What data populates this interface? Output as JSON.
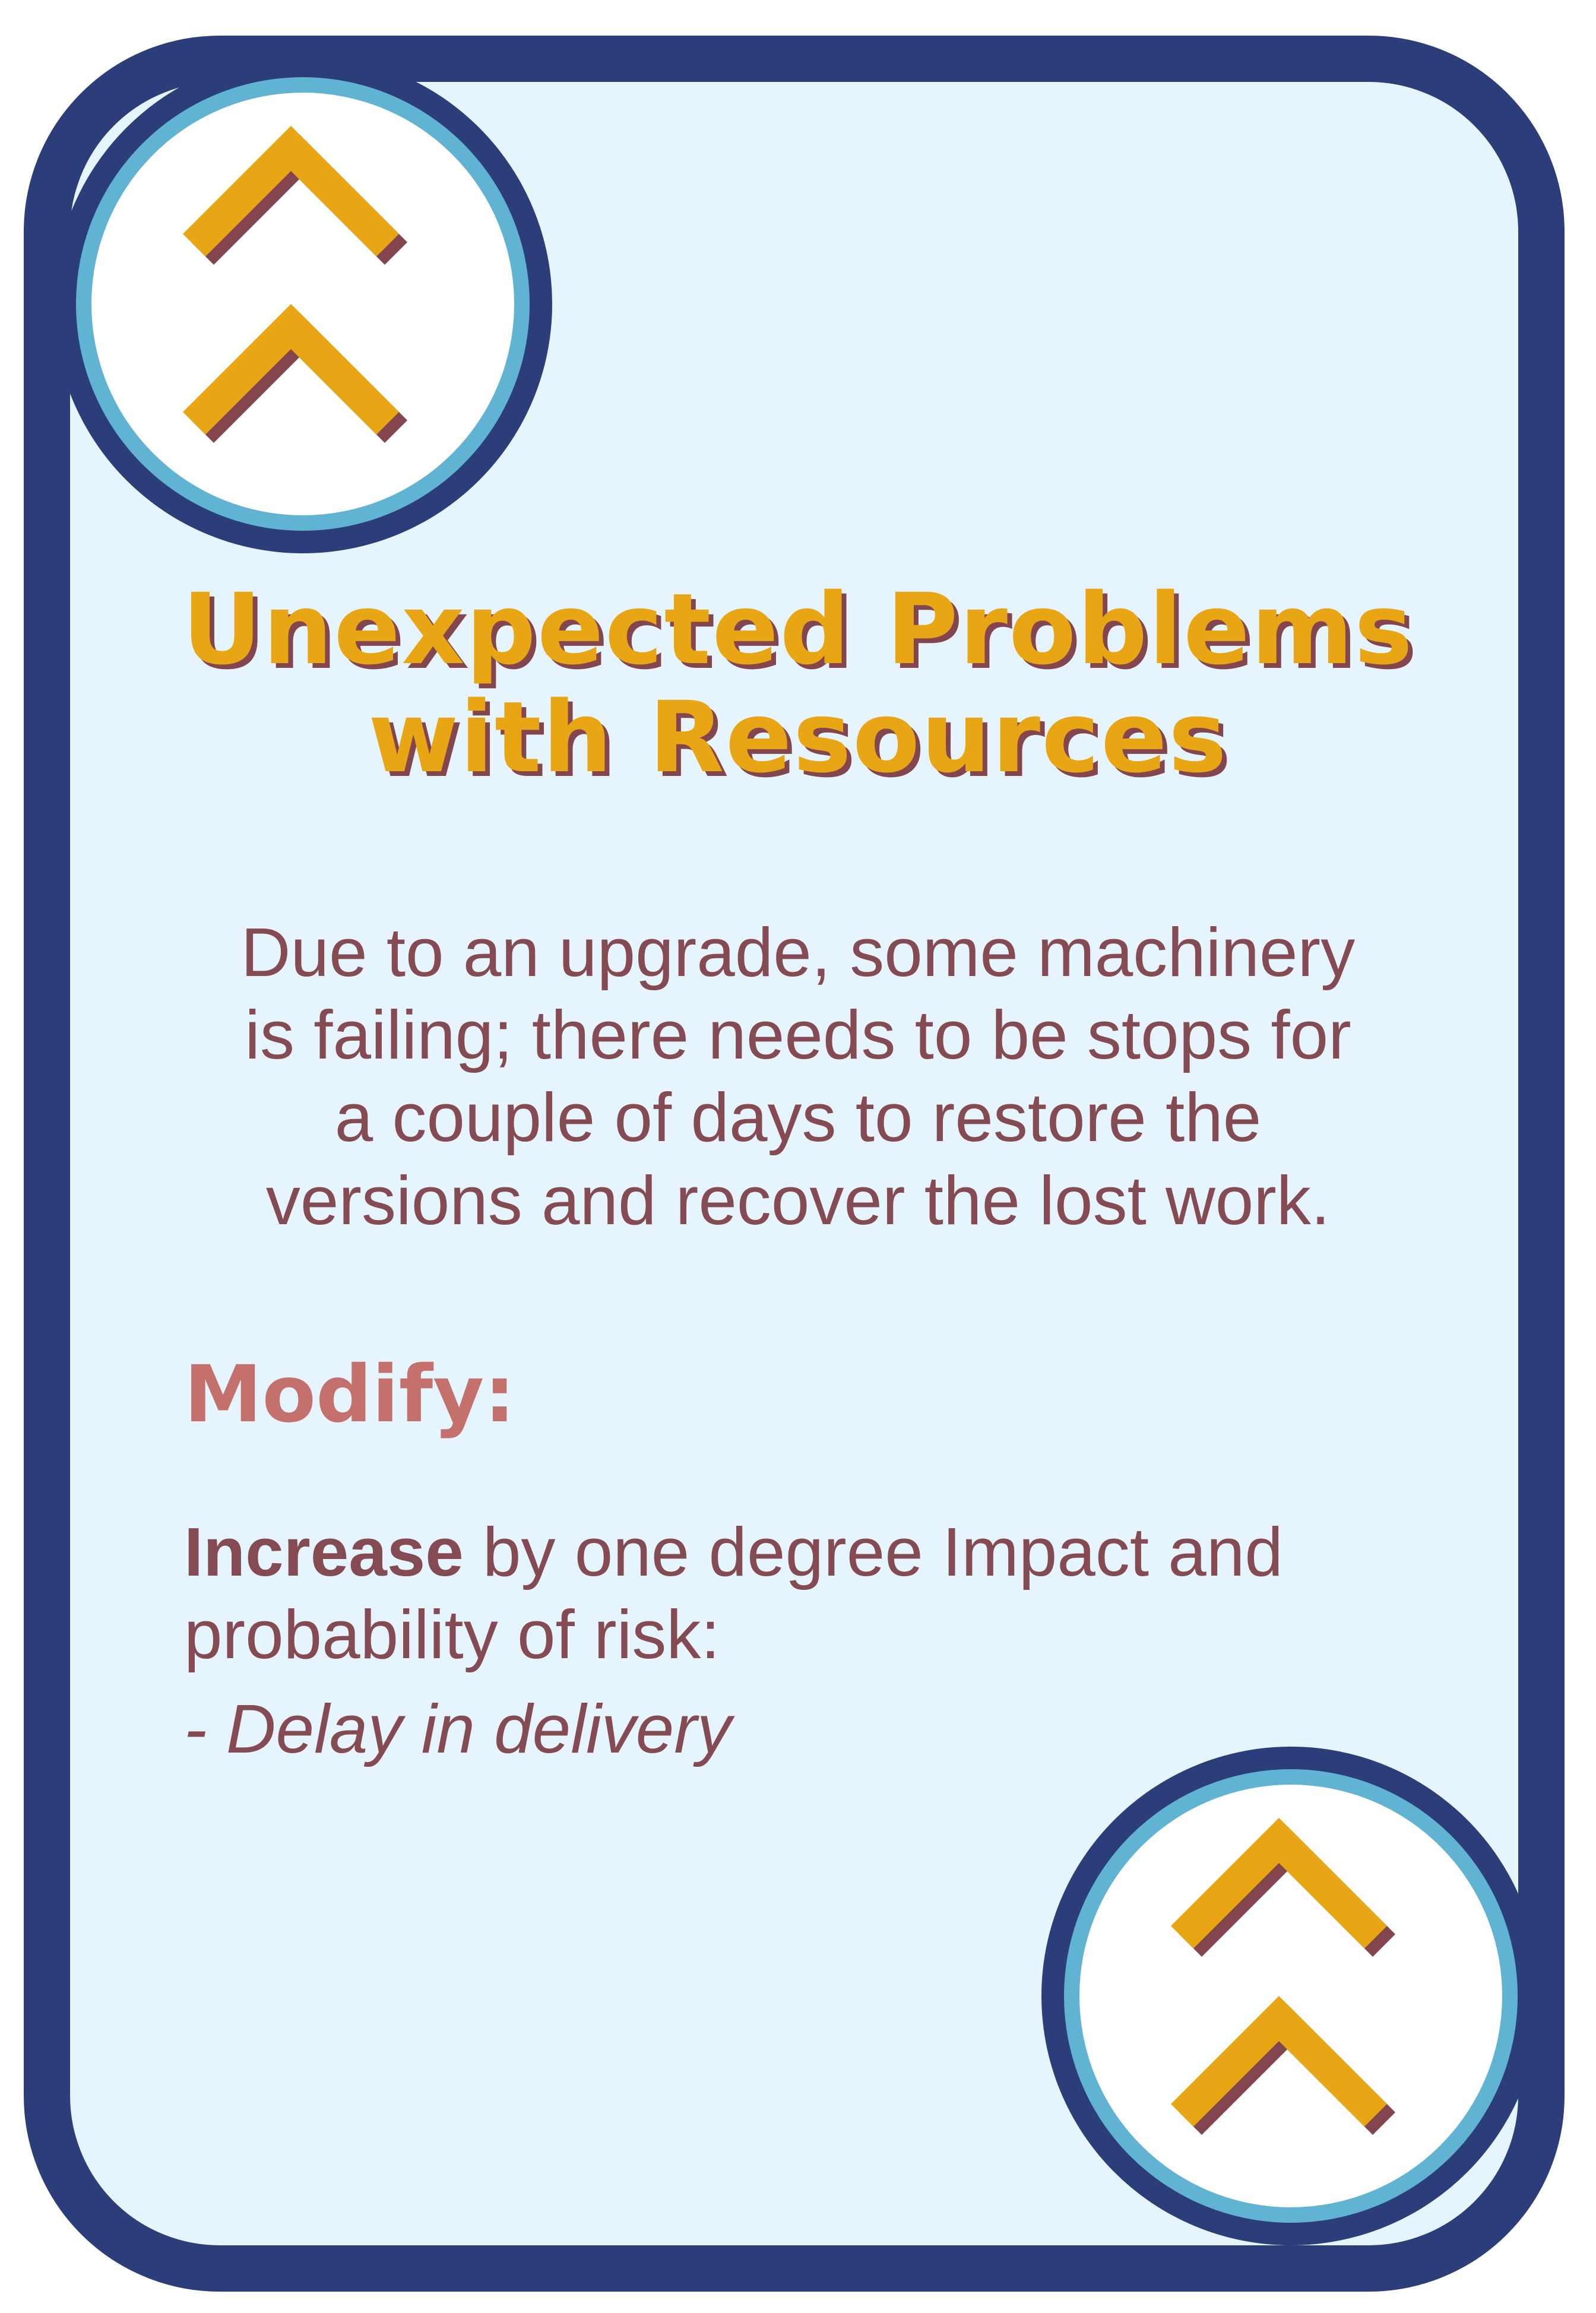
{
  "card": {
    "title_lines": [
      "Unexpected Problems",
      "with Resources"
    ],
    "description_lines": [
      "Due to an upgrade, some machinery",
      "is failing; there needs to be stops for",
      "a couple of days to restore the",
      "versions and recover the lost work."
    ],
    "modify_label": "Modify:",
    "effect": {
      "action": "Increase",
      "line1_rest": " by one degree Impact and",
      "line2": "probability of risk:",
      "risk_item": "- Delay in delivery"
    }
  },
  "badges": {
    "icon": "double-chevron-up-icon"
  },
  "colors": {
    "border": "#2b3e79",
    "ring": "#61b3d3",
    "background": "#e6f4fd",
    "title": "#e8a514",
    "title_shadow": "#84464e",
    "text": "#844b52",
    "modify": "#c4716e"
  }
}
